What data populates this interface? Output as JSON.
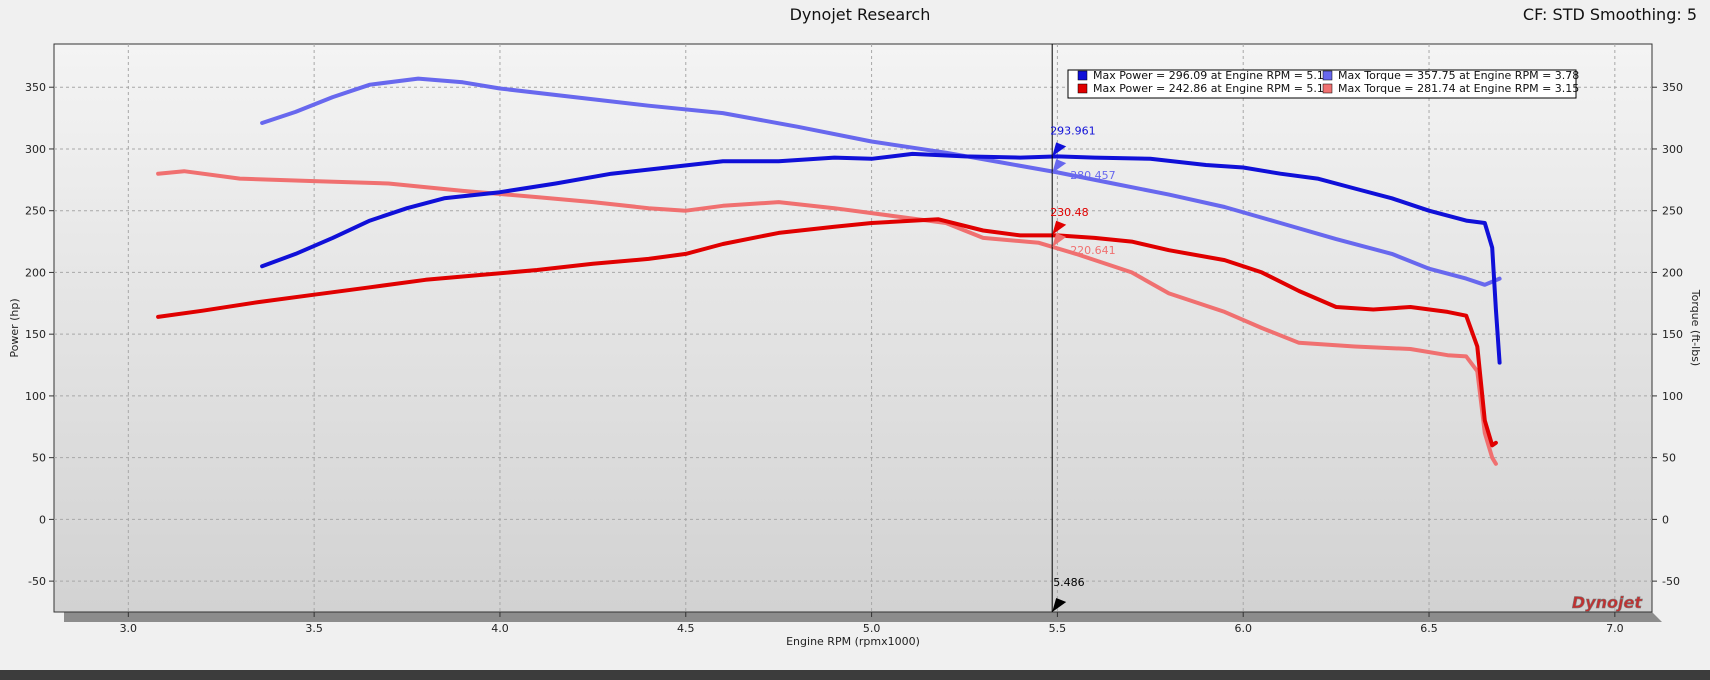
{
  "header": {
    "title": "Dynojet Research",
    "settings": "CF: STD Smoothing: 5"
  },
  "watermark": "Dynojet",
  "chart_data": {
    "type": "line",
    "xlabel": "Engine RPM (rpmx1000)",
    "ylabel_left": "Power (hp)",
    "ylabel_right": "Torque (ft-lbs)",
    "xlim": [
      2.8,
      7.1
    ],
    "ylim": [
      -75,
      385
    ],
    "x_ticks": [
      3.0,
      3.5,
      4.0,
      4.5,
      5.0,
      5.5,
      6.0,
      6.5,
      7.0
    ],
    "x_tick_labels": [
      "3.0",
      "3.5",
      "4.0",
      "4.5",
      "5.0",
      "5.5",
      "6.0",
      "6.5",
      "7.0"
    ],
    "y_ticks": [
      -50,
      0,
      50,
      100,
      150,
      200,
      250,
      300,
      350
    ],
    "y_tick_labels": [
      "-50",
      "0",
      "50",
      "100",
      "150",
      "200",
      "250",
      "300",
      "350"
    ],
    "grid": true,
    "legend_position": "top-right",
    "cursor": {
      "x": 5.486,
      "label": "5.486",
      "readouts": [
        {
          "value": 293.961,
          "label": "293.961",
          "color": "#1010d8"
        },
        {
          "value": 280.457,
          "label": "280.457",
          "color": "#6868ee"
        },
        {
          "value": 230.48,
          "label": "230.48",
          "color": "#e00000"
        },
        {
          "value": 220.641,
          "label": "220.641",
          "color": "#f07070"
        }
      ]
    },
    "series": [
      {
        "name": "Max Power = 296.09 at Engine RPM = 5.11",
        "color": "#1010d8",
        "x": [
          3.36,
          3.45,
          3.55,
          3.65,
          3.75,
          3.85,
          4.0,
          4.15,
          4.3,
          4.45,
          4.6,
          4.75,
          4.9,
          5.0,
          5.11,
          5.25,
          5.4,
          5.5,
          5.6,
          5.75,
          5.9,
          6.0,
          6.1,
          6.2,
          6.3,
          6.4,
          6.5,
          6.6,
          6.65,
          6.67,
          6.68,
          6.69
        ],
        "y": [
          205,
          215,
          228,
          242,
          252,
          260,
          265,
          272,
          280,
          285,
          290,
          290,
          293,
          292,
          296,
          294,
          293,
          294,
          293,
          292,
          287,
          285,
          280,
          276,
          268,
          260,
          250,
          242,
          240,
          220,
          170,
          127
        ]
      },
      {
        "name": "Max Torque = 357.75 at Engine RPM = 3.78",
        "color": "#6868ee",
        "x": [
          3.36,
          3.45,
          3.55,
          3.65,
          3.78,
          3.9,
          4.0,
          4.2,
          4.4,
          4.6,
          4.8,
          5.0,
          5.2,
          5.35,
          5.5,
          5.65,
          5.8,
          5.95,
          6.1,
          6.25,
          6.4,
          6.5,
          6.6,
          6.65,
          6.69
        ],
        "y": [
          321,
          330,
          342,
          352,
          357,
          354,
          349,
          342,
          335,
          329,
          318,
          306,
          297,
          289,
          281,
          272,
          263,
          253,
          240,
          227,
          215,
          203,
          195,
          190,
          195
        ]
      },
      {
        "name": "Max Power = 242.86 at Engine RPM = 5.18",
        "color": "#e00000",
        "x": [
          3.08,
          3.2,
          3.35,
          3.5,
          3.65,
          3.8,
          3.95,
          4.1,
          4.25,
          4.4,
          4.5,
          4.6,
          4.75,
          4.9,
          5.0,
          5.18,
          5.3,
          5.4,
          5.5,
          5.6,
          5.7,
          5.8,
          5.95,
          6.05,
          6.15,
          6.25,
          6.35,
          6.45,
          6.55,
          6.6,
          6.63,
          6.65,
          6.67,
          6.68
        ],
        "y": [
          164,
          169,
          176,
          182,
          188,
          194,
          198,
          202,
          207,
          211,
          215,
          223,
          232,
          237,
          240,
          243,
          234,
          230,
          230,
          228,
          225,
          218,
          210,
          200,
          185,
          172,
          170,
          172,
          168,
          165,
          140,
          80,
          60,
          62
        ]
      },
      {
        "name": "Max Torque = 281.74 at Engine RPM = 3.15",
        "color": "#f07070",
        "x": [
          3.08,
          3.15,
          3.3,
          3.5,
          3.7,
          3.9,
          4.1,
          4.25,
          4.4,
          4.5,
          4.6,
          4.75,
          4.9,
          5.05,
          5.2,
          5.3,
          5.45,
          5.55,
          5.7,
          5.8,
          5.95,
          6.05,
          6.15,
          6.3,
          6.45,
          6.55,
          6.6,
          6.63,
          6.65,
          6.67,
          6.68
        ],
        "y": [
          280,
          282,
          276,
          274,
          272,
          266,
          261,
          257,
          252,
          250,
          254,
          257,
          252,
          246,
          240,
          228,
          224,
          215,
          200,
          183,
          168,
          155,
          143,
          140,
          138,
          133,
          132,
          120,
          70,
          50,
          45
        ]
      }
    ]
  }
}
